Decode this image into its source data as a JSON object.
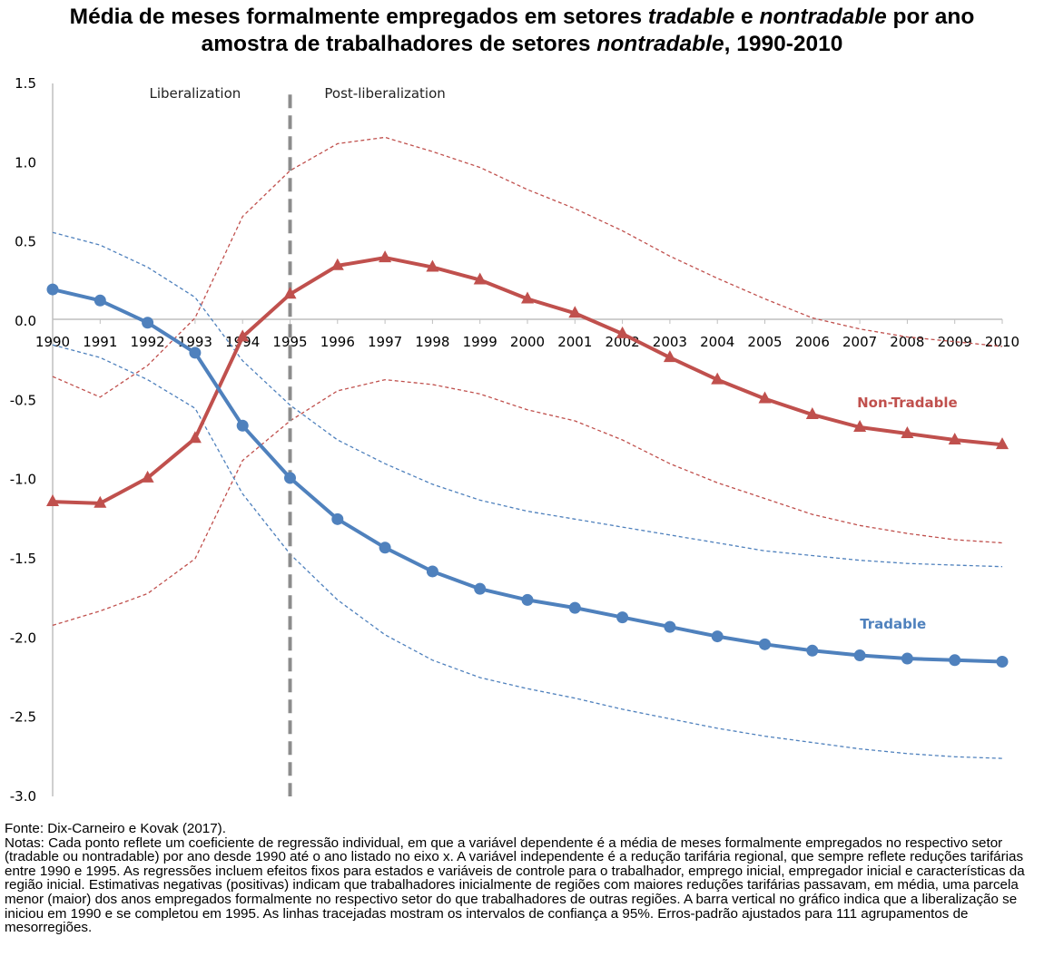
{
  "title": {
    "line1_a": "Média de meses formalmente empregados em setores ",
    "line1_b": "tradable",
    "line1_c": " e ",
    "line1_d": "nontradable",
    "line1_e": " por ano",
    "line2_a": "amostra de trabalhadores de setores ",
    "line2_b": "nontradable",
    "line2_c": ", 1990-2010"
  },
  "chart_data": {
    "type": "line",
    "x": [
      1990,
      1991,
      1992,
      1993,
      1994,
      1995,
      1996,
      1997,
      1998,
      1999,
      2000,
      2001,
      2002,
      2003,
      2004,
      2005,
      2006,
      2007,
      2008,
      2009,
      2010
    ],
    "x_tick_labels": [
      "1990",
      "1991",
      "1992",
      "1993",
      "1994",
      "1995",
      "1996",
      "1997",
      "1998",
      "1999",
      "2000",
      "2001",
      "2002",
      "2003",
      "2004",
      "2005",
      "2006",
      "2007",
      "2008",
      "2009",
      "2010"
    ],
    "y_ticks": [
      1.5,
      1.0,
      0.5,
      0.0,
      -0.5,
      -1.0,
      -1.5,
      -2.0,
      -2.5,
      -3.0
    ],
    "y_tick_labels": [
      "1.5",
      "1.0",
      "0.5",
      "0.0",
      "-0.5",
      "-1.0",
      "-1.5",
      "-2.0",
      "-2.5",
      "-3.0"
    ],
    "ylim": [
      -3.0,
      1.5
    ],
    "xlim": [
      1990,
      2010
    ],
    "grid": false,
    "xlabel": "",
    "ylabel": "",
    "vertical_line": {
      "x": 1995,
      "style": "dashed",
      "color": "#8c8c8c"
    },
    "phase_labels": [
      {
        "text": "Liberalization",
        "x": 1993
      },
      {
        "text": "Post-liberalization",
        "x": 1997
      }
    ],
    "series": [
      {
        "name": "Non-Tradable",
        "color": "#c0504d",
        "marker": "triangle",
        "values": [
          -1.14,
          -1.15,
          -0.99,
          -0.74,
          -0.1,
          0.17,
          0.35,
          0.4,
          0.34,
          0.26,
          0.14,
          0.05,
          -0.08,
          -0.23,
          -0.37,
          -0.49,
          -0.59,
          -0.67,
          -0.71,
          -0.75,
          -0.78
        ],
        "ci_lower": [
          -1.92,
          -1.83,
          -1.72,
          -1.5,
          -0.88,
          -0.63,
          -0.44,
          -0.37,
          -0.4,
          -0.46,
          -0.56,
          -0.63,
          -0.75,
          -0.9,
          -1.02,
          -1.12,
          -1.22,
          -1.29,
          -1.34,
          -1.38,
          -1.4
        ],
        "ci_upper": [
          -0.35,
          -0.48,
          -0.28,
          0.02,
          0.66,
          0.95,
          1.12,
          1.16,
          1.07,
          0.97,
          0.83,
          0.71,
          0.57,
          0.41,
          0.27,
          0.14,
          0.02,
          -0.05,
          -0.1,
          -0.13,
          -0.16
        ]
      },
      {
        "name": "Tradable",
        "color": "#4f81bd",
        "marker": "circle",
        "values": [
          0.2,
          0.13,
          -0.01,
          -0.2,
          -0.66,
          -0.99,
          -1.25,
          -1.43,
          -1.58,
          -1.69,
          -1.76,
          -1.81,
          -1.87,
          -1.93,
          -1.99,
          -2.04,
          -2.08,
          -2.11,
          -2.13,
          -2.14,
          -2.15
        ],
        "ci_lower": [
          -0.15,
          -0.23,
          -0.37,
          -0.55,
          -1.09,
          -1.47,
          -1.76,
          -1.98,
          -2.14,
          -2.25,
          -2.32,
          -2.38,
          -2.45,
          -2.51,
          -2.57,
          -2.62,
          -2.66,
          -2.7,
          -2.73,
          -2.75,
          -2.76
        ],
        "ci_upper": [
          0.56,
          0.48,
          0.34,
          0.15,
          -0.25,
          -0.53,
          -0.75,
          -0.9,
          -1.03,
          -1.13,
          -1.2,
          -1.25,
          -1.3,
          -1.35,
          -1.4,
          -1.45,
          -1.48,
          -1.51,
          -1.53,
          -1.54,
          -1.55
        ]
      }
    ]
  },
  "notes": {
    "source": "Fonte: Dix-Carneiro e Kovak (2017).",
    "text": "Notas: Cada ponto reflete um coeficiente de regressão individual, em que a variável dependente é a média de meses formalmente empregados no respectivo setor (tradable ou nontradable) por ano desde 1990 até o ano listado no eixo x. A variável independente é a redução tarifária regional, que sempre reflete reduções tarifárias entre 1990 e 1995. As regressões incluem efeitos fixos para estados e variáveis de controle para o trabalhador, emprego inicial, empregador inicial e características da região inicial. Estimativas negativas (positivas) indicam que trabalhadores inicialmente de regiões com maiores reduções tarifárias passavam, em média, uma parcela menor (maior) dos anos empregados formalmente no respectivo setor do que trabalhadores de outras regiões. A barra vertical no gráfico indica que a liberalização se iniciou em 1990 e se completou em 1995. As linhas tracejadas mostram os intervalos de confiança a 95%. Erros-padrão ajustados para 111 agrupamentos de mesorregiões."
  }
}
